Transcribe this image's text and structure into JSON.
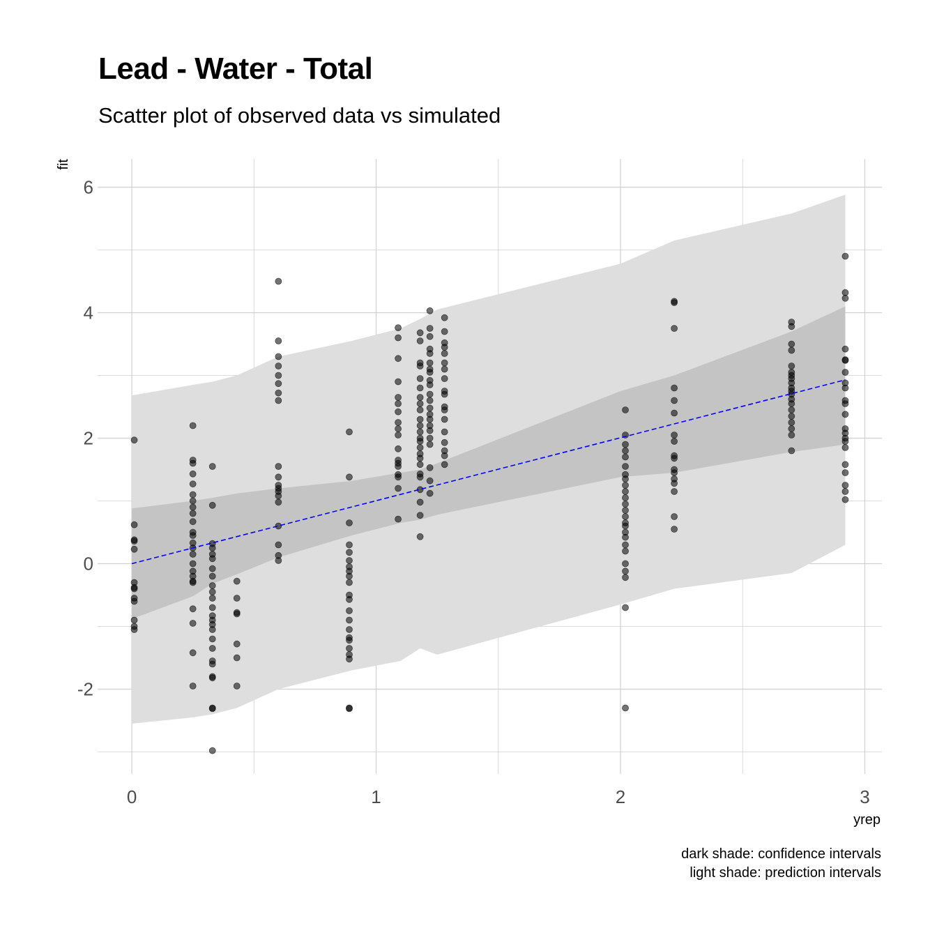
{
  "chart_data": {
    "type": "scatter",
    "title": "Lead - Water - Total",
    "subtitle": "Scatter plot of observed data vs simulated",
    "xlabel": "yrep",
    "ylabel": "fit",
    "xlim": [
      -0.14,
      3.07
    ],
    "ylim": [
      -3.35,
      6.45
    ],
    "x_ticks": [
      0,
      1,
      2,
      3
    ],
    "y_ticks": [
      -2,
      0,
      2,
      4,
      6
    ],
    "grid": true,
    "caption": [
      "dark shade: confidence intervals",
      "light shade: prediction intervals"
    ],
    "colors": {
      "points": "#000000",
      "fit_line": "#0000ff",
      "confidence_band": "#c4c4c4",
      "prediction_band": "#dedede",
      "grid": "#d0d0d0"
    },
    "fit_line": {
      "x": [
        0,
        2.92
      ],
      "y": [
        0.0,
        2.93
      ],
      "style": "dashed"
    },
    "confidence_band": {
      "x": [
        0.0,
        0.25,
        0.33,
        0.43,
        0.6,
        0.9,
        1.1,
        1.18,
        1.25,
        2.0,
        2.22,
        2.7,
        2.92
      ],
      "lower": [
        -0.88,
        -0.52,
        -0.32,
        -0.17,
        0.1,
        0.45,
        0.65,
        0.7,
        0.78,
        1.38,
        1.45,
        1.78,
        1.9
      ],
      "upper": [
        0.88,
        1.0,
        1.05,
        1.12,
        1.2,
        1.32,
        1.45,
        1.5,
        1.6,
        2.75,
        3.0,
        3.7,
        4.1
      ]
    },
    "prediction_band": {
      "x": [
        0.0,
        0.25,
        0.33,
        0.43,
        0.6,
        0.9,
        1.1,
        1.18,
        1.25,
        2.0,
        2.22,
        2.7,
        2.92
      ],
      "lower": [
        -2.55,
        -2.45,
        -2.4,
        -2.3,
        -2.0,
        -1.7,
        -1.55,
        -1.35,
        -1.45,
        -0.65,
        -0.4,
        -0.15,
        0.3
      ],
      "upper": [
        2.68,
        2.85,
        2.9,
        3.0,
        3.3,
        3.55,
        3.75,
        3.9,
        4.05,
        4.78,
        5.15,
        5.58,
        5.88
      ]
    },
    "points": [
      {
        "x": 0.01,
        "y": [
          1.97,
          0.62,
          0.38,
          0.36,
          0.23,
          -0.3,
          -0.38,
          -0.4,
          -0.55,
          -0.6,
          -0.9,
          -1.0,
          -1.05
        ]
      },
      {
        "x": 0.25,
        "y": [
          2.2,
          1.65,
          1.6,
          1.43,
          1.27,
          1.1,
          1.0,
          0.9,
          0.8,
          0.67,
          0.5,
          0.45,
          0.33,
          0.25,
          0.15,
          0.0,
          -0.12,
          -0.2,
          -0.28,
          -0.3,
          -0.72,
          -0.95,
          -1.42,
          -1.95
        ]
      },
      {
        "x": 0.33,
        "y": [
          1.55,
          0.93,
          0.32,
          0.25,
          0.15,
          0.08,
          -0.08,
          -0.2,
          -0.35,
          -0.45,
          -0.55,
          -0.7,
          -0.83,
          -0.9,
          -0.97,
          -1.05,
          -1.2,
          -1.35,
          -1.55,
          -1.6,
          -1.8,
          -1.82,
          -2.3,
          -2.31,
          -2.98
        ]
      },
      {
        "x": 0.43,
        "y": [
          -0.28,
          -0.55,
          -0.78,
          -0.8,
          -1.28,
          -1.5,
          -1.95
        ]
      },
      {
        "x": 0.6,
        "y": [
          4.5,
          3.55,
          3.3,
          3.15,
          3.0,
          2.87,
          2.72,
          2.6,
          1.55,
          1.38,
          1.25,
          1.2,
          1.15,
          1.08,
          0.98,
          0.6,
          0.3,
          0.13,
          0.05
        ]
      },
      {
        "x": 0.89,
        "y": [
          2.1,
          1.38,
          0.65,
          0.3,
          0.18,
          0.05,
          -0.05,
          -0.12,
          -0.2,
          -0.3,
          -0.5,
          -0.57,
          -0.75,
          -0.9,
          -1.05,
          -1.18,
          -1.22,
          -1.35,
          -1.45,
          -1.52,
          -2.3,
          -2.31
        ]
      },
      {
        "x": 1.09,
        "y": [
          3.76,
          3.6,
          3.27,
          2.9,
          2.65,
          2.55,
          2.42,
          2.25,
          2.15,
          2.05,
          1.83,
          1.65,
          1.6,
          1.55,
          1.42,
          1.38,
          1.2,
          0.71
        ]
      },
      {
        "x": 1.18,
        "y": [
          3.68,
          3.55,
          3.2,
          3.15,
          2.95,
          2.8,
          2.65,
          2.55,
          2.45,
          2.3,
          2.2,
          2.1,
          2.0,
          1.95,
          1.85,
          1.75,
          1.68,
          1.58,
          1.43,
          1.38,
          1.18,
          0.98,
          0.77,
          0.43
        ]
      },
      {
        "x": 1.22,
        "y": [
          4.03,
          3.75,
          3.62,
          3.42,
          3.35,
          3.2,
          3.1,
          3.05,
          2.92,
          2.85,
          2.7,
          2.6,
          2.48,
          2.38,
          2.3,
          2.2,
          2.12,
          2.0,
          1.9,
          1.53,
          1.32,
          1.12
        ]
      },
      {
        "x": 1.28,
        "y": [
          3.92,
          3.7,
          3.52,
          3.45,
          3.35,
          3.2,
          3.1,
          2.95,
          2.75,
          2.7,
          2.5,
          2.45,
          2.3,
          2.1,
          1.93,
          1.8,
          1.72,
          1.58
        ]
      },
      {
        "x": 2.02,
        "y": [
          2.45,
          2.05,
          1.9,
          1.8,
          1.7,
          1.55,
          1.42,
          1.35,
          1.25,
          1.15,
          1.05,
          0.95,
          0.85,
          0.75,
          0.65,
          0.6,
          0.5,
          0.42,
          0.3,
          0.2,
          0.0,
          -0.12,
          -0.22,
          -0.7,
          -2.3
        ]
      },
      {
        "x": 2.22,
        "y": [
          4.18,
          4.16,
          3.75,
          2.8,
          2.6,
          2.4,
          2.05,
          1.95,
          1.72,
          1.68,
          1.5,
          1.45,
          1.35,
          1.28,
          1.15,
          0.75,
          0.55
        ]
      },
      {
        "x": 2.7,
        "y": [
          3.85,
          3.78,
          3.5,
          3.4,
          3.15,
          3.05,
          3.0,
          2.95,
          2.88,
          2.8,
          2.75,
          2.7,
          2.62,
          2.55,
          2.45,
          2.35,
          2.25,
          2.15,
          2.05,
          1.8
        ]
      },
      {
        "x": 2.92,
        "y": [
          4.9,
          4.32,
          4.23,
          3.42,
          3.25,
          3.24,
          3.05,
          2.88,
          2.8,
          2.6,
          2.55,
          2.38,
          2.15,
          2.08,
          2.0,
          1.95,
          1.85,
          1.58,
          1.45,
          1.25,
          1.15,
          1.02
        ]
      }
    ]
  }
}
